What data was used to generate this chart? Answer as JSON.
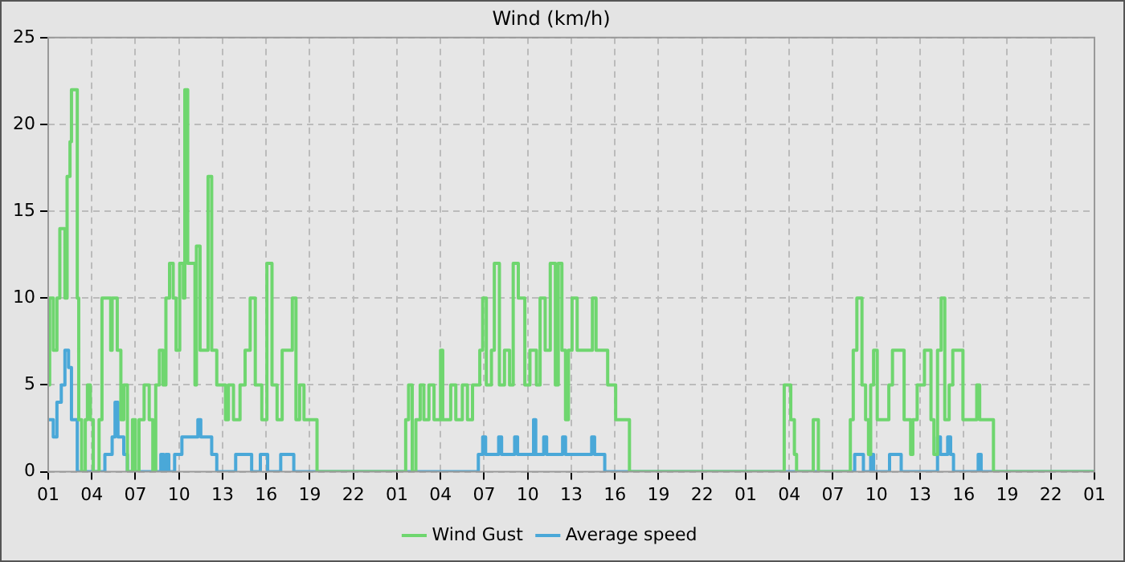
{
  "chart_data": {
    "type": "step",
    "title": "Wind (km/h)",
    "xlim": [
      "--01-01T01:00",
      "--01-04T01:00"
    ],
    "ylim": [
      0,
      25
    ],
    "xticks": [
      {
        "value": "--01-01T01:00",
        "label": "01"
      },
      {
        "value": "--01-01T04:00",
        "label": "04"
      },
      {
        "value": "--01-01T07:00",
        "label": "07"
      },
      {
        "value": "--01-01T10:00",
        "label": "10"
      },
      {
        "value": "--01-01T13:00",
        "label": "13"
      },
      {
        "value": "--01-01T16:00",
        "label": "16"
      },
      {
        "value": "--01-01T19:00",
        "label": "19"
      },
      {
        "value": "--01-01T22:00",
        "label": "22"
      },
      {
        "value": "--01-02T01:00",
        "label": "01"
      },
      {
        "value": "--01-02T04:00",
        "label": "04"
      },
      {
        "value": "--01-02T07:00",
        "label": "07"
      },
      {
        "value": "--01-02T10:00",
        "label": "10"
      },
      {
        "value": "--01-02T13:00",
        "label": "13"
      },
      {
        "value": "--01-02T16:00",
        "label": "16"
      },
      {
        "value": "--01-02T19:00",
        "label": "19"
      },
      {
        "value": "--01-02T22:00",
        "label": "22"
      },
      {
        "value": "--01-03T01:00",
        "label": "01"
      },
      {
        "value": "--01-03T04:00",
        "label": "04"
      },
      {
        "value": "--01-03T07:00",
        "label": "07"
      },
      {
        "value": "--01-03T10:00",
        "label": "10"
      },
      {
        "value": "--01-03T13:00",
        "label": "13"
      },
      {
        "value": "--01-03T16:00",
        "label": "16"
      },
      {
        "value": "--01-03T19:00",
        "label": "19"
      },
      {
        "value": "--01-03T22:00",
        "label": "22"
      },
      {
        "value": "--01-04T01:00",
        "label": "01"
      }
    ],
    "yticks": [
      0,
      5,
      10,
      15,
      20,
      25
    ],
    "grid": true,
    "legend": "bottom",
    "line_style": "solid",
    "marker": "none",
    "series": [
      {
        "name": "Wind Gust",
        "color": "#6fd66f",
        "x": [
          "--01-01T01:00",
          "--01-01T01:06",
          "--01-01T01:21",
          "--01-01T01:36",
          "--01-01T01:48",
          "--01-01T02:09",
          "--01-01T02:18",
          "--01-01T02:30",
          "--01-01T02:36",
          "--01-01T03:00",
          "--01-01T03:06",
          "--01-01T03:18",
          "--01-01T03:33",
          "--01-01T03:42",
          "--01-01T03:54",
          "--01-01T04:06",
          "--01-01T04:30",
          "--01-01T04:42",
          "--01-01T05:18",
          "--01-01T05:24",
          "--01-01T05:45",
          "--01-01T06:00",
          "--01-01T06:12",
          "--01-01T06:27",
          "--01-01T06:48",
          "--01-01T07:00",
          "--01-01T07:15",
          "--01-01T07:36",
          "--01-01T07:57",
          "--01-01T08:12",
          "--01-01T08:24",
          "--01-01T08:39",
          "--01-01T08:54",
          "--01-01T09:06",
          "--01-01T09:21",
          "--01-01T09:36",
          "--01-01T09:48",
          "--01-01T10:03",
          "--01-01T10:18",
          "--01-01T10:24",
          "--01-01T10:36",
          "--01-01T11:06",
          "--01-01T11:12",
          "--01-01T11:27",
          "--01-01T12:00",
          "--01-01T12:15",
          "--01-01T12:36",
          "--01-01T13:12",
          "--01-01T13:24",
          "--01-01T13:45",
          "--01-01T14:12",
          "--01-01T14:33",
          "--01-01T14:54",
          "--01-01T15:15",
          "--01-01T15:42",
          "--01-01T16:03",
          "--01-01T16:24",
          "--01-01T16:45",
          "--01-01T17:06",
          "--01-01T17:48",
          "--01-01T18:03",
          "--01-01T18:18",
          "--01-01T18:36",
          "--01-01T19:30",
          "--01-02T01:36",
          "--01-02T01:48",
          "--01-02T02:03",
          "--01-02T02:18",
          "--01-02T02:36",
          "--01-02T02:51",
          "--01-02T03:12",
          "--01-02T03:33",
          "--01-02T04:00",
          "--01-02T04:09",
          "--01-02T04:42",
          "--01-02T05:03",
          "--01-02T05:30",
          "--01-02T05:51",
          "--01-02T06:12",
          "--01-02T06:42",
          "--01-02T06:54",
          "--01-02T07:09",
          "--01-02T07:30",
          "--01-02T07:42",
          "--01-02T08:03",
          "--01-02T08:24",
          "--01-02T08:45",
          "--01-02T09:00",
          "--01-02T09:21",
          "--01-02T09:48",
          "--01-02T10:09",
          "--01-02T10:36",
          "--01-02T10:51",
          "--01-02T11:12",
          "--01-02T11:33",
          "--01-02T11:54",
          "--01-02T12:06",
          "--01-02T12:21",
          "--01-02T12:36",
          "--01-02T12:48",
          "--01-02T13:03",
          "--01-02T13:24",
          "--01-02T14:27",
          "--01-02T14:42",
          "--01-02T15:30",
          "--01-02T16:03",
          "--01-02T17:00",
          "--01-03T03:39",
          "--01-03T04:06",
          "--01-03T04:21",
          "--01-03T04:30",
          "--01-03T05:39",
          "--01-03T06:00",
          "--01-03T08:12",
          "--01-03T08:24",
          "--01-03T08:39",
          "--01-03T09:00",
          "--01-03T09:15",
          "--01-03T09:27",
          "--01-03T09:36",
          "--01-03T09:48",
          "--01-03T10:03",
          "--01-03T10:51",
          "--01-03T11:06",
          "--01-03T11:54",
          "--01-03T12:21",
          "--01-03T12:30",
          "--01-03T12:48",
          "--01-03T13:18",
          "--01-03T13:45",
          "--01-03T13:57",
          "--01-03T14:12",
          "--01-03T14:27",
          "--01-03T14:42",
          "--01-03T15:00",
          "--01-03T15:15",
          "--01-03T15:57",
          "--01-03T16:54",
          "--01-03T17:06",
          "--01-03T18:03",
          "--01-04T01:00"
        ],
        "values": [
          5,
          10,
          7,
          10,
          14,
          10,
          17,
          19,
          22,
          10,
          3,
          0,
          3,
          5,
          3,
          0,
          3,
          10,
          7,
          10,
          7,
          3,
          5,
          0,
          3,
          0,
          3,
          5,
          3,
          0,
          5,
          7,
          5,
          10,
          12,
          10,
          7,
          12,
          10,
          22,
          12,
          5,
          13,
          7,
          17,
          7,
          5,
          3,
          5,
          3,
          5,
          7,
          10,
          5,
          3,
          12,
          5,
          3,
          7,
          10,
          3,
          5,
          3,
          0,
          3,
          5,
          0,
          3,
          5,
          3,
          5,
          3,
          7,
          3,
          5,
          3,
          5,
          3,
          5,
          7,
          10,
          5,
          7,
          12,
          5,
          7,
          5,
          12,
          10,
          5,
          7,
          5,
          10,
          7,
          12,
          5,
          12,
          7,
          3,
          7,
          10,
          7,
          10,
          7,
          5,
          3,
          0,
          5,
          3,
          1,
          0,
          3,
          0,
          3,
          7,
          10,
          5,
          3,
          1,
          5,
          7,
          3,
          5,
          7,
          3,
          1,
          3,
          5,
          7,
          3,
          1,
          7,
          10,
          3,
          5,
          7,
          3,
          5,
          3,
          0,
          0
        ]
      },
      {
        "name": "Average speed",
        "color": "#4aa8d8",
        "x": [
          "--01-01T01:00",
          "--01-01T01:21",
          "--01-01T01:36",
          "--01-01T01:54",
          "--01-01T02:09",
          "--01-01T02:24",
          "--01-01T02:36",
          "--01-01T03:00",
          "--01-01T04:54",
          "--01-01T05:24",
          "--01-01T05:36",
          "--01-01T05:48",
          "--01-01T06:12",
          "--01-01T06:27",
          "--01-01T08:45",
          "--01-01T08:57",
          "--01-01T09:06",
          "--01-01T09:18",
          "--01-01T09:42",
          "--01-01T10:12",
          "--01-01T11:18",
          "--01-01T11:30",
          "--01-01T12:15",
          "--01-01T12:36",
          "--01-01T13:54",
          "--01-01T15:00",
          "--01-01T15:36",
          "--01-01T16:06",
          "--01-01T17:00",
          "--01-01T17:54",
          "--01-02T06:36",
          "--01-02T06:54",
          "--01-02T07:06",
          "--01-02T08:00",
          "--01-02T08:12",
          "--01-02T09:06",
          "--01-02T09:18",
          "--01-02T10:24",
          "--01-02T10:33",
          "--01-02T11:06",
          "--01-02T11:18",
          "--01-02T12:24",
          "--01-02T12:36",
          "--01-02T14:24",
          "--01-02T14:36",
          "--01-02T15:18",
          "--01-03T08:30",
          "--01-03T09:06",
          "--01-03T09:36",
          "--01-03T09:48",
          "--01-03T10:54",
          "--01-03T11:42",
          "--01-03T14:12",
          "--01-03T14:24",
          "--01-03T14:54",
          "--01-03T15:06",
          "--01-03T15:18",
          "--01-03T17:00",
          "--01-03T17:12",
          "--01-04T01:00"
        ],
        "values": [
          3,
          2,
          4,
          5,
          7,
          6,
          3,
          0,
          1,
          2,
          4,
          2,
          1,
          0,
          1,
          0,
          1,
          0,
          1,
          2,
          3,
          2,
          1,
          0,
          1,
          0,
          1,
          0,
          1,
          0,
          1,
          2,
          1,
          2,
          1,
          2,
          1,
          3,
          1,
          2,
          1,
          2,
          1,
          2,
          1,
          0,
          1,
          0,
          1,
          0,
          1,
          0,
          2,
          1,
          2,
          1,
          0,
          1,
          0,
          0
        ]
      }
    ]
  }
}
